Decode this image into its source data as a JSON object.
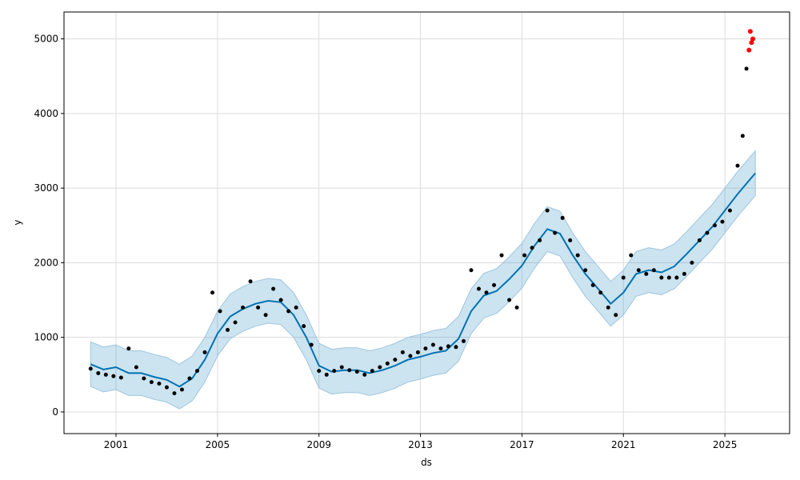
{
  "chart_data": {
    "type": "scatter",
    "title": "",
    "xlabel": "ds",
    "ylabel": "y",
    "xlim": [
      1998.95,
      2027.55
    ],
    "ylim": [
      -290,
      5360
    ],
    "x_ticks": [
      2001,
      2005,
      2009,
      2013,
      2017,
      2021,
      2025
    ],
    "x_tick_labels": [
      "2001",
      "2005",
      "2009",
      "2013",
      "2017",
      "2021",
      "2025"
    ],
    "y_ticks": [
      0,
      1000,
      2000,
      3000,
      4000,
      5000
    ],
    "y_tick_labels": [
      "0",
      "1000",
      "2000",
      "3000",
      "4000",
      "5000"
    ],
    "grid": true,
    "legend": "none",
    "colors": {
      "observed": "#000000",
      "highlight": "#ff0000",
      "forecast_line": "#0072b2",
      "uncertainty_band": "#0072b2"
    },
    "forecast": {
      "x": [
        2000.0,
        2000.5,
        2001.0,
        2001.5,
        2002.0,
        2002.5,
        2003.0,
        2003.5,
        2004.0,
        2004.5,
        2005.0,
        2005.5,
        2006.0,
        2006.5,
        2007.0,
        2007.5,
        2008.0,
        2008.5,
        2009.0,
        2009.5,
        2010.0,
        2010.5,
        2011.0,
        2011.5,
        2012.0,
        2012.5,
        2013.0,
        2013.5,
        2014.0,
        2014.5,
        2015.0,
        2015.5,
        2016.0,
        2016.5,
        2017.0,
        2017.5,
        2018.0,
        2018.5,
        2019.0,
        2019.5,
        2020.0,
        2020.5,
        2021.0,
        2021.5,
        2022.0,
        2022.5,
        2023.0,
        2023.5,
        2024.0,
        2024.5,
        2025.0,
        2025.5,
        2026.0,
        2026.2
      ],
      "yhat": [
        640,
        570,
        600,
        520,
        520,
        470,
        430,
        340,
        450,
        700,
        1050,
        1280,
        1380,
        1450,
        1490,
        1470,
        1300,
        1000,
        620,
        540,
        560,
        560,
        520,
        560,
        620,
        700,
        740,
        790,
        820,
        980,
        1350,
        1560,
        1620,
        1780,
        1960,
        2230,
        2450,
        2390,
        2100,
        1850,
        1650,
        1450,
        1600,
        1850,
        1900,
        1870,
        1950,
        2120,
        2300,
        2480,
        2700,
        2920,
        3120,
        3200
      ],
      "band": 300
    },
    "observed": {
      "x": [
        2000.0,
        2000.3,
        2000.6,
        2000.9,
        2001.2,
        2001.5,
        2001.8,
        2002.1,
        2002.4,
        2002.7,
        2003.0,
        2003.3,
        2003.6,
        2003.9,
        2004.2,
        2004.5,
        2004.8,
        2005.1,
        2005.4,
        2005.7,
        2006.0,
        2006.3,
        2006.6,
        2006.9,
        2007.2,
        2007.5,
        2007.8,
        2008.1,
        2008.4,
        2008.7,
        2009.0,
        2009.3,
        2009.6,
        2009.9,
        2010.2,
        2010.5,
        2010.8,
        2011.1,
        2011.4,
        2011.7,
        2012.0,
        2012.3,
        2012.6,
        2012.9,
        2013.2,
        2013.5,
        2013.8,
        2014.1,
        2014.4,
        2014.7,
        2015.0,
        2015.3,
        2015.6,
        2015.9,
        2016.2,
        2016.5,
        2016.8,
        2017.1,
        2017.4,
        2017.7,
        2018.0,
        2018.3,
        2018.6,
        2018.9,
        2019.2,
        2019.5,
        2019.8,
        2020.1,
        2020.4,
        2020.7,
        2021.0,
        2021.3,
        2021.6,
        2021.9,
        2022.2,
        2022.5,
        2022.8,
        2023.1,
        2023.4,
        2023.7,
        2024.0,
        2024.3,
        2024.6,
        2024.9,
        2025.2,
        2025.5,
        2025.7,
        2025.85
      ],
      "y": [
        580,
        520,
        500,
        480,
        460,
        850,
        600,
        450,
        400,
        380,
        330,
        250,
        300,
        450,
        550,
        800,
        1600,
        1350,
        1100,
        1200,
        1400,
        1750,
        1400,
        1300,
        1650,
        1500,
        1350,
        1400,
        1150,
        900,
        550,
        500,
        550,
        600,
        560,
        540,
        500,
        550,
        600,
        650,
        700,
        800,
        750,
        800,
        850,
        900,
        850,
        880,
        870,
        950,
        1900,
        1650,
        1600,
        1700,
        2100,
        1500,
        1400,
        2100,
        2200,
        2300,
        2700,
        2400,
        2600,
        2300,
        2100,
        1900,
        1700,
        1600,
        1400,
        1300,
        1800,
        2100,
        1900,
        1850,
        1900,
        1800,
        1800,
        1800,
        1850,
        2000,
        2300,
        2400,
        2500,
        2550,
        2700,
        3300,
        3700,
        4600
      ]
    },
    "highlighted": {
      "x": [
        2025.95,
        2026.0,
        2026.05,
        2026.1
      ],
      "y": [
        4850,
        5100,
        4950,
        5000
      ]
    }
  }
}
